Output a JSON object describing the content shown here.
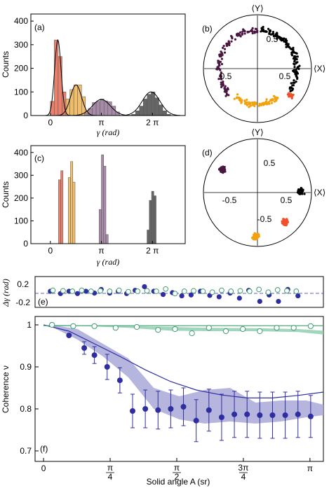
{
  "colors": {
    "salmon": "#e8806c",
    "peach": "#f0bd6a",
    "mauve": "#a68aa8",
    "gray": "#666666",
    "dark_purple": "#4a1740",
    "orange": "#f2a20c",
    "red_orange": "#f0502a",
    "black": "#000000",
    "navy": "#2e2ea0",
    "lavender": "#a9a8d8",
    "green": "#3f9d6f",
    "light_green": "#8fcfb0"
  },
  "chart_data": [
    {
      "panel": "(a)",
      "type": "bar",
      "ylabel": "Counts",
      "xlabel": "γ (rad)",
      "xlim": [
        -1.2,
        8.3
      ],
      "ylim": [
        0,
        430
      ],
      "yticks": [
        0,
        100,
        200,
        300,
        400
      ],
      "xticks": [
        {
          "v": 0,
          "t": "0"
        },
        {
          "v": 3.1416,
          "t": "π"
        },
        {
          "v": 6.2832,
          "t": "2 π"
        }
      ],
      "bin_width": 0.24,
      "series": [
        {
          "color": "salmon",
          "x": [
            0.0,
            0.24,
            0.48,
            0.72,
            0.96
          ],
          "values": [
            60,
            320,
            250,
            100,
            10
          ]
        },
        {
          "color": "peach",
          "x": [
            0.96,
            1.2,
            1.44,
            1.68,
            1.92,
            2.16
          ],
          "values": [
            70,
            110,
            130,
            130,
            80,
            20
          ]
        },
        {
          "color": "mauve",
          "x": [
            2.1,
            2.34,
            2.58,
            2.82,
            3.06,
            3.3,
            3.54,
            3.78,
            4.02
          ],
          "values": [
            10,
            30,
            55,
            60,
            70,
            62,
            58,
            40,
            15
          ]
        },
        {
          "color": "gray",
          "x": [
            5.0,
            5.24,
            5.48,
            5.72,
            5.96,
            6.2,
            6.44,
            6.68,
            6.92,
            7.16
          ],
          "values": [
            5,
            20,
            40,
            70,
            90,
            100,
            75,
            45,
            20,
            5
          ]
        }
      ],
      "fits": [
        {
          "mu": 0.46,
          "sigma": 0.2,
          "amp": 320
        },
        {
          "mu": 1.58,
          "sigma": 0.34,
          "amp": 130
        },
        {
          "mu": 3.14,
          "sigma": 0.55,
          "amp": 68
        },
        {
          "mu": 6.2,
          "sigma": 0.55,
          "amp": 100
        }
      ]
    },
    {
      "panel": "(b)",
      "type": "scatter",
      "top_label": "⟨Y⟩",
      "right_label": "⟨X⟩",
      "tick_labels": [
        "0.5",
        "0.5",
        "0.5"
      ],
      "clusters": [
        {
          "color": "black",
          "shape": "arc",
          "a0": -35,
          "a1": 85,
          "r": 0.72,
          "n": 140
        },
        {
          "color": "dark_purple",
          "shape": "arc",
          "a0": 90,
          "a1": 225,
          "r": 0.72,
          "n": 120
        },
        {
          "color": "orange",
          "shape": "arc",
          "a0": 232,
          "a1": 305,
          "r": 0.66,
          "n": 90
        },
        {
          "color": "red_orange",
          "shape": "blob",
          "cx": 0.62,
          "cy": -0.5,
          "n": 25
        }
      ]
    },
    {
      "panel": "(c)",
      "type": "bar",
      "ylabel": "Counts",
      "xlabel": "γ (rad)",
      "xlim": [
        -1.2,
        8.3
      ],
      "ylim": [
        0,
        430
      ],
      "yticks": [
        0,
        100,
        200,
        300,
        400
      ],
      "xticks": [
        {
          "v": 0,
          "t": "0"
        },
        {
          "v": 3.1416,
          "t": "π"
        },
        {
          "v": 6.2832,
          "t": "2 π"
        }
      ],
      "bin_width": 0.14,
      "series": [
        {
          "color": "salmon",
          "x": [
            0.5,
            0.64
          ],
          "values": [
            280,
            320
          ]
        },
        {
          "color": "peach",
          "x": [
            1.1,
            1.24,
            1.38
          ],
          "values": [
            290,
            360,
            270
          ]
        },
        {
          "color": "mauve",
          "x": [
            3.0,
            3.14,
            3.28,
            3.42
          ],
          "values": [
            150,
            390,
            340,
            40
          ]
        },
        {
          "color": "gray",
          "x": [
            5.95,
            6.09,
            6.23,
            6.37
          ],
          "values": [
            60,
            190,
            230,
            210
          ]
        }
      ]
    },
    {
      "panel": "(d)",
      "type": "scatter",
      "top_label": "⟨Y⟩",
      "right_label": "⟨X⟩",
      "tick_labels": [
        "-0.5",
        "0.5",
        "0.5",
        "-0.5"
      ],
      "clusters": [
        {
          "color": "dark_purple",
          "shape": "blob",
          "cx": -0.65,
          "cy": 0.42,
          "n": 70
        },
        {
          "color": "black",
          "shape": "blob",
          "cx": 0.8,
          "cy": 0.02,
          "n": 90
        },
        {
          "color": "red_orange",
          "shape": "blob",
          "cx": 0.5,
          "cy": -0.55,
          "n": 55
        },
        {
          "color": "orange",
          "shape": "blob",
          "cx": -0.03,
          "cy": -0.82,
          "n": 50
        }
      ]
    },
    {
      "panel": "(e)",
      "type": "scatter",
      "ylabel": "Δγ (rad)",
      "yticks": [
        "0.2",
        "-0.2"
      ],
      "ylim": [
        -0.35,
        0.32
      ],
      "series": [
        {
          "name": "",
          "color": "navy",
          "filled": true,
          "x": [
            0.08,
            0.2,
            0.3,
            0.4,
            0.5,
            0.6,
            0.68,
            0.78,
            0.88,
            0.98,
            1.08,
            1.19,
            1.3,
            1.41,
            1.52,
            1.63,
            1.74,
            1.85,
            1.96,
            2.07,
            2.2,
            2.31,
            2.42,
            2.55,
            2.66,
            2.77,
            2.88,
            3.0
          ],
          "values": [
            0.0,
            -0.05,
            0.0,
            -0.05,
            0.0,
            -0.04,
            0.04,
            -0.04,
            0.0,
            -0.05,
            0.02,
            0.1,
            0.0,
            -0.07,
            -0.03,
            -0.1,
            -0.08,
            0.0,
            -0.09,
            -0.12,
            -0.04,
            -0.15,
            0.02,
            -0.22,
            -0.08,
            -0.22,
            0.04,
            -0.1
          ]
        },
        {
          "name": "",
          "color": "green",
          "filled": false,
          "x": [
            0.11,
            0.23,
            0.34,
            0.45,
            0.56,
            0.67,
            0.78,
            0.89,
            1.0,
            1.11,
            1.22,
            1.33,
            1.44,
            1.55,
            1.66,
            1.77,
            1.88,
            1.99,
            2.1,
            2.21,
            2.32,
            2.43,
            2.54,
            2.65,
            2.76,
            2.87,
            2.98
          ],
          "values": [
            0.02,
            0.01,
            0.0,
            0.02,
            0.0,
            0.01,
            0.0,
            0.02,
            -0.01,
            0.0,
            0.01,
            0.0,
            0.05,
            -0.05,
            0.0,
            0.01,
            0.0,
            -0.02,
            0.02,
            0.0,
            0.01,
            0.0,
            0.04,
            -0.02,
            0.03,
            0.01,
            0.0
          ]
        }
      ]
    },
    {
      "panel": "(f)",
      "type": "scatter",
      "xlabel": "Solid angle A (sr)",
      "ylabel": "Coherence ν",
      "xlim": [
        -0.1,
        3.3
      ],
      "ylim": [
        0.675,
        1.02
      ],
      "yticks": [
        0.7,
        0.8,
        0.9,
        1
      ],
      "xticks": [
        {
          "v": 0.7854,
          "n": "π",
          "d": "4"
        },
        {
          "v": 1.5708,
          "n": "π",
          "d": "2"
        },
        {
          "v": 2.3562,
          "n": "3π",
          "d": "4"
        },
        {
          "v": 3.1416,
          "t": "π"
        }
      ],
      "series": [
        {
          "name": "",
          "color": "navy",
          "filled": true,
          "x": [
            0.1,
            0.3,
            0.48,
            0.6,
            0.75,
            0.9,
            1.05,
            1.2,
            1.35,
            1.5,
            1.65,
            1.8,
            1.95,
            2.1,
            2.25,
            2.4,
            2.55,
            2.7,
            2.85,
            3.0,
            3.15
          ],
          "values": [
            1.0,
            0.975,
            0.945,
            0.928,
            0.9,
            0.868,
            0.795,
            0.8,
            0.797,
            0.8,
            0.805,
            0.772,
            0.797,
            0.78,
            0.787,
            0.787,
            0.785,
            0.785,
            0.785,
            0.787,
            0.782
          ],
          "err": [
            0.0,
            0.0,
            0.015,
            0.02,
            0.03,
            0.03,
            0.04,
            0.045,
            0.045,
            0.045,
            0.045,
            0.05,
            0.05,
            0.055,
            0.055,
            0.055,
            0.055,
            0.055,
            0.055,
            0.055,
            0.05
          ]
        },
        {
          "name": "",
          "color": "green",
          "filled": false,
          "x": [
            0.1,
            0.35,
            0.6,
            0.85,
            1.1,
            1.35,
            1.55,
            1.75,
            1.95,
            2.15,
            2.35,
            2.55,
            2.75,
            2.95,
            3.15
          ],
          "values": [
            1.0,
            0.997,
            0.997,
            0.993,
            0.995,
            0.988,
            0.99,
            0.98,
            0.993,
            0.985,
            0.99,
            0.985,
            0.993,
            0.993,
            0.997
          ]
        }
      ],
      "curves": [
        {
          "color": "navy",
          "x": [
            0.0,
            0.3,
            0.6,
            0.9,
            1.2,
            1.5,
            1.8,
            2.1,
            2.4,
            2.7,
            3.0,
            3.3
          ],
          "values": [
            1.0,
            0.985,
            0.955,
            0.925,
            0.893,
            0.865,
            0.845,
            0.833,
            0.826,
            0.826,
            0.832,
            0.84
          ]
        },
        {
          "color": "green",
          "x": [
            0.0,
            0.5,
            1.0,
            1.5,
            2.0,
            2.5,
            3.0,
            3.3
          ],
          "values": [
            0.998,
            0.998,
            0.998,
            0.998,
            0.998,
            0.998,
            0.998,
            0.998
          ]
        }
      ],
      "bands": [
        {
          "color": "lavender",
          "x": [
            0.1,
            0.4,
            0.7,
            1.0,
            1.3,
            1.6,
            1.9,
            2.2,
            2.5,
            2.8,
            3.1,
            3.3
          ],
          "upper": [
            1.0,
            0.99,
            0.955,
            0.92,
            0.85,
            0.83,
            0.845,
            0.85,
            0.815,
            0.82,
            0.82,
            0.81
          ],
          "lower": [
            0.995,
            0.965,
            0.925,
            0.875,
            0.8,
            0.775,
            0.765,
            0.77,
            0.765,
            0.77,
            0.78,
            0.785
          ]
        },
        {
          "color": "light_green",
          "x": [
            0.1,
            0.5,
            1.0,
            1.5,
            2.0,
            2.5,
            3.0,
            3.3
          ],
          "upper": [
            1.0,
            0.999,
            0.997,
            0.995,
            0.993,
            0.992,
            0.99,
            0.986
          ],
          "lower": [
            0.999,
            0.997,
            0.993,
            0.986,
            0.985,
            0.985,
            0.983,
            0.977
          ]
        }
      ]
    }
  ]
}
